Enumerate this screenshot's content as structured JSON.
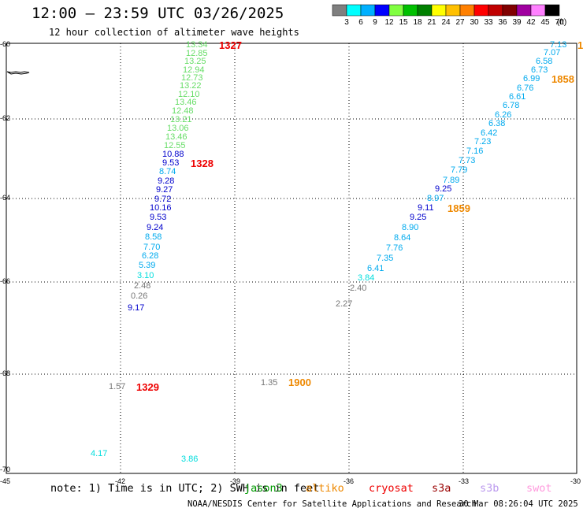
{
  "header": {
    "title": "12:00 – 23:59 UTC 03/26/2025",
    "subtitle": "12 hour collection of altimeter wave heights"
  },
  "colorbar": {
    "unit_label": "(ft)",
    "colors": [
      "#7f7f7f",
      "#00ffff",
      "#00b0ff",
      "#0000ff",
      "#80ff40",
      "#00c000",
      "#008000",
      "#ffff00",
      "#ffc000",
      "#ff8000",
      "#ff0000",
      "#c00000",
      "#800000",
      "#a000a0",
      "#ff80ff",
      "#000000"
    ],
    "labels": [
      "3",
      "6",
      "9",
      "12",
      "15",
      "18",
      "21",
      "24",
      "27",
      "30",
      "33",
      "36",
      "39",
      "42",
      "45",
      "70"
    ]
  },
  "axes": {
    "x_ticks": [
      "-45",
      "-42",
      "-39",
      "-36",
      "-33",
      "-30"
    ],
    "y_ticks": [
      "-60",
      "-62",
      "-64",
      "-66",
      "-68",
      "-70"
    ]
  },
  "observations": [
    {
      "text": "13.34",
      "color": "#66dd66"
    },
    {
      "text": "12.85",
      "color": "#66dd66"
    },
    {
      "text": "13.25",
      "color": "#66dd66"
    },
    {
      "text": "12.94",
      "color": "#66dd66"
    },
    {
      "text": "12.73",
      "color": "#66dd66"
    },
    {
      "text": "13.22",
      "color": "#66dd66"
    },
    {
      "text": "12.10",
      "color": "#66dd66"
    },
    {
      "text": "13.46",
      "color": "#66dd66"
    },
    {
      "text": "12.48",
      "color": "#66dd66"
    },
    {
      "text": "13.21",
      "color": "#66dd66"
    },
    {
      "text": "13.06",
      "color": "#66dd66"
    },
    {
      "text": "13.46",
      "color": "#66dd66"
    },
    {
      "text": "12.55",
      "color": "#66dd66"
    },
    {
      "text": "10.88",
      "color": "#0000cc"
    },
    {
      "text": "9.53",
      "color": "#0000cc"
    },
    {
      "text": "8.74",
      "color": "#00aaee"
    },
    {
      "text": "9.28",
      "color": "#0000cc"
    },
    {
      "text": "9.27",
      "color": "#0000cc"
    },
    {
      "text": "9.72",
      "color": "#0000cc"
    },
    {
      "text": "10.16",
      "color": "#0000cc"
    },
    {
      "text": "9.53",
      "color": "#0000cc"
    },
    {
      "text": "9.24",
      "color": "#0000cc"
    },
    {
      "text": "8.58",
      "color": "#00aaee"
    },
    {
      "text": "7.70",
      "color": "#00aaee"
    },
    {
      "text": "6.28",
      "color": "#00aaee"
    },
    {
      "text": "5.39",
      "color": "#00aaee"
    },
    {
      "text": "3.10",
      "color": "#00dddd"
    },
    {
      "text": "2.48",
      "color": "#777777"
    },
    {
      "text": "0.26",
      "color": "#777777"
    },
    {
      "text": "9.17",
      "color": "#0000cc"
    },
    {
      "text": "1.57",
      "color": "#777777"
    },
    {
      "text": "4.17",
      "color": "#00dddd"
    },
    {
      "text": "3.86",
      "color": "#00dddd"
    },
    {
      "text": "1.35",
      "color": "#777777"
    },
    {
      "text": "7.13",
      "color": "#00aaee"
    },
    {
      "text": "7.07",
      "color": "#00aaee"
    },
    {
      "text": "6.58",
      "color": "#00aaee"
    },
    {
      "text": "6.73",
      "color": "#00aaee"
    },
    {
      "text": "6.99",
      "color": "#00aaee"
    },
    {
      "text": "6.76",
      "color": "#00aaee"
    },
    {
      "text": "6.61",
      "color": "#00aaee"
    },
    {
      "text": "6.78",
      "color": "#00aaee"
    },
    {
      "text": "6.26",
      "color": "#00aaee"
    },
    {
      "text": "6.38",
      "color": "#00aaee"
    },
    {
      "text": "6.42",
      "color": "#00aaee"
    },
    {
      "text": "7.23",
      "color": "#00aaee"
    },
    {
      "text": "7.16",
      "color": "#00aaee"
    },
    {
      "text": "7.73",
      "color": "#00aaee"
    },
    {
      "text": "7.79",
      "color": "#00aaee"
    },
    {
      "text": "7.89",
      "color": "#00aaee"
    },
    {
      "text": "9.25",
      "color": "#0000cc"
    },
    {
      "text": "8.97",
      "color": "#00aaee"
    },
    {
      "text": "9.11",
      "color": "#0000cc"
    },
    {
      "text": "9.25",
      "color": "#0000cc"
    },
    {
      "text": "8.90",
      "color": "#00aaee"
    },
    {
      "text": "8.64",
      "color": "#00aaee"
    },
    {
      "text": "7.76",
      "color": "#00aaee"
    },
    {
      "text": "7.35",
      "color": "#00aaee"
    },
    {
      "text": "6.41",
      "color": "#00aaee"
    },
    {
      "text": "3.84",
      "color": "#00dddd"
    },
    {
      "text": "2.40",
      "color": "#777777"
    },
    {
      "text": "2.27",
      "color": "#777777"
    }
  ],
  "pass_times": [
    {
      "text": "1327",
      "color": "#ee0000"
    },
    {
      "text": "1328",
      "color": "#ee0000"
    },
    {
      "text": "1329",
      "color": "#ee0000"
    },
    {
      "text": "1858",
      "color": "#ee8800"
    },
    {
      "text": "1859",
      "color": "#ee8800"
    },
    {
      "text": "1900",
      "color": "#ee8800"
    },
    {
      "text": "1",
      "color": "#ee8800"
    }
  ],
  "footer": {
    "note_prefix": "note: 1) Time is in UTC; 2) SWH is in feet",
    "satellites": [
      {
        "name": "jason3",
        "color": "#009900"
      },
      {
        "name": "altiko",
        "color": "#ee8800"
      },
      {
        "name": "cryosat",
        "color": "#ee0000"
      },
      {
        "name": "s3a",
        "color": "#990000"
      },
      {
        "name": "s3b",
        "color": "#bb99ee"
      },
      {
        "name": "swot",
        "color": "#ff99dd"
      }
    ],
    "credit": "NOAA/NESDIS Center for Satellite Applications and Research",
    "timestamp": "30 Mar 08:26:04 UTC 2025"
  }
}
